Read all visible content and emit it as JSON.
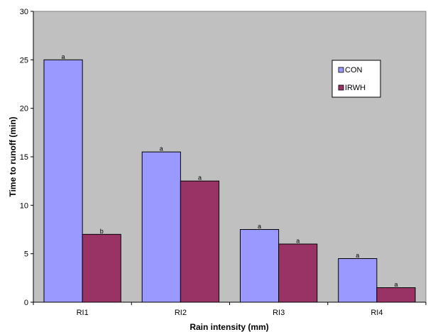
{
  "chart_data": {
    "type": "bar",
    "title": "",
    "xlabel": "Rain  intensity (mm)",
    "ylabel": "Time to runoff (min)",
    "ylim": [
      0,
      30
    ],
    "yticks": [
      0,
      5,
      10,
      15,
      20,
      25,
      30
    ],
    "categories": [
      "RI1",
      "RI2",
      "RI3",
      "RI4"
    ],
    "series": [
      {
        "name": "CON",
        "color": "#9999ff",
        "values": [
          25,
          15.5,
          7.5,
          4.5
        ],
        "labels": [
          "a",
          "a",
          "a",
          "a"
        ]
      },
      {
        "name": "IRWH",
        "color": "#993366",
        "values": [
          7,
          12.5,
          6,
          1.5
        ],
        "labels": [
          "b",
          "a",
          "a",
          "a"
        ]
      }
    ],
    "plot_background": "#c0c0c0",
    "grid": false,
    "legend_position": "top-right"
  }
}
